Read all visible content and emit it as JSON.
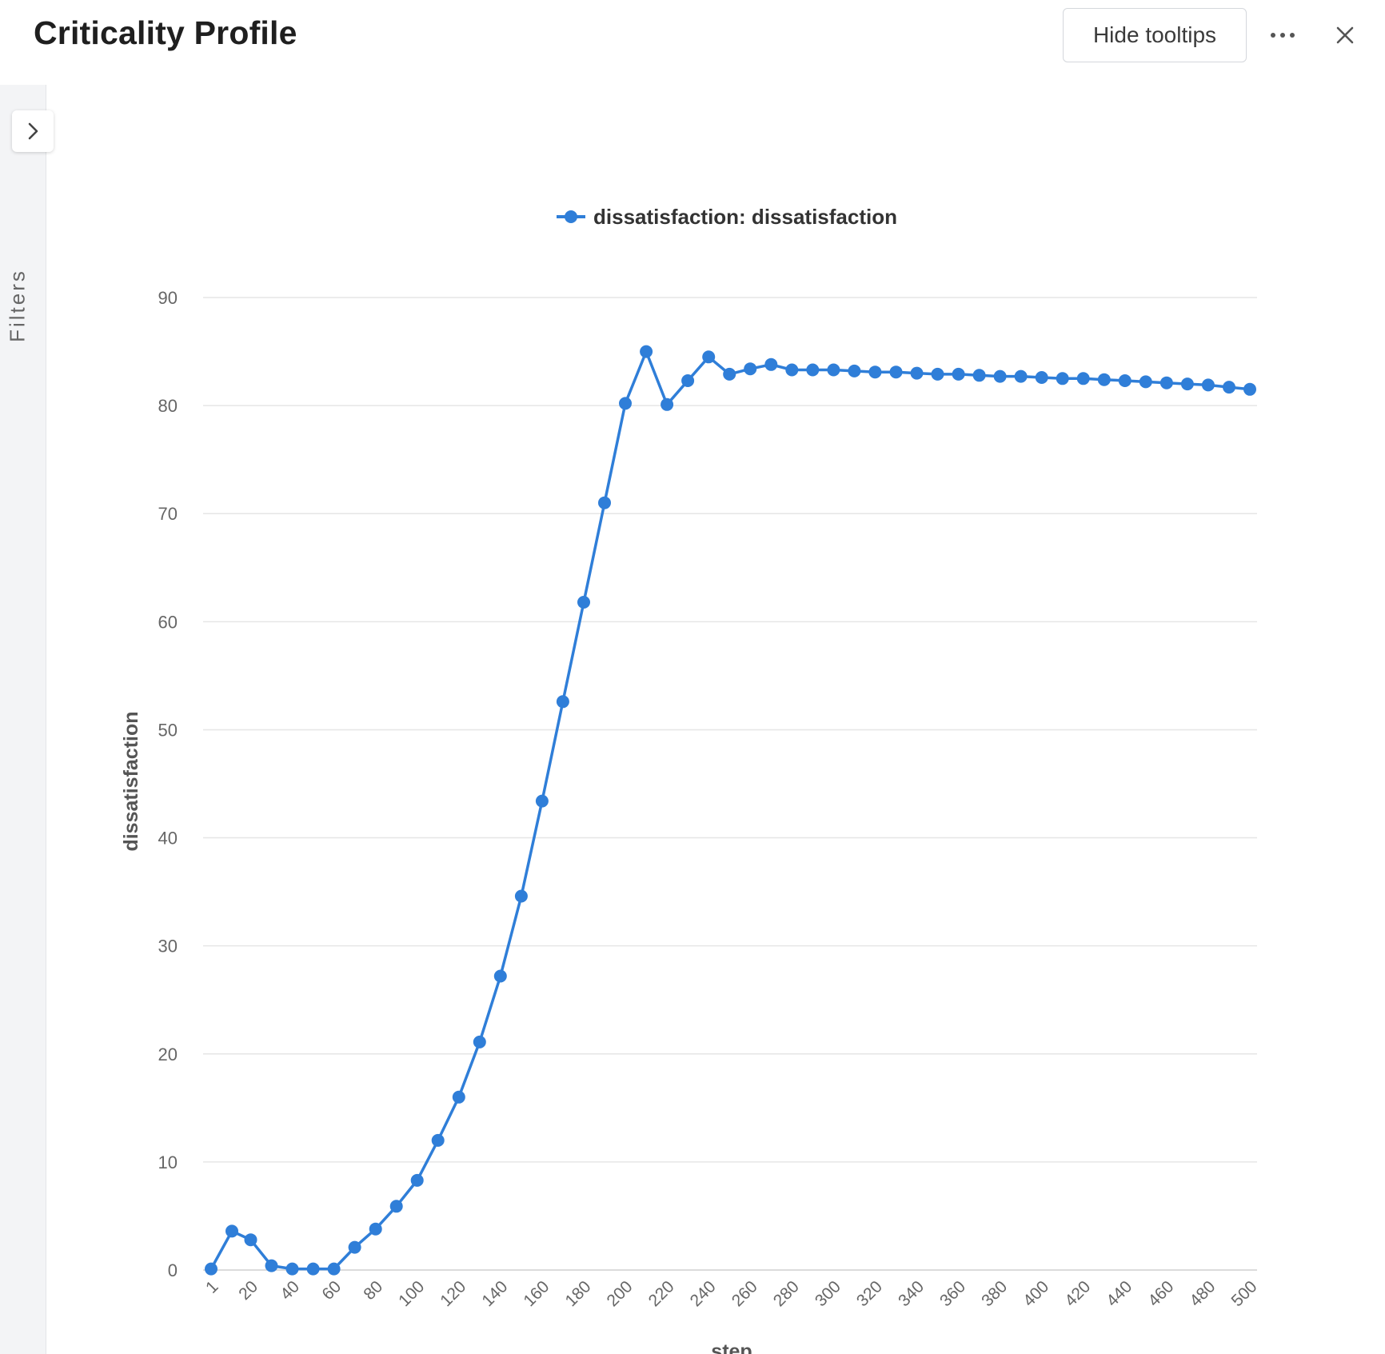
{
  "header": {
    "title": "Criticality Profile",
    "hide_tooltips_label": "Hide tooltips",
    "more_icon": "more-horizontal-icon",
    "close_icon": "close-icon"
  },
  "sidebar": {
    "filters_label": "Filters",
    "expand_icon": "chevron-right-icon"
  },
  "colors": {
    "series": "#2f7ed8",
    "grid": "#e6e6e6",
    "axis_text": "#666666",
    "axis_title": "#555555"
  },
  "chart_data": {
    "type": "line",
    "title": "",
    "xlabel": "step",
    "ylabel": "dissatisfaction",
    "ylim": [
      0,
      90
    ],
    "yticks": [
      0,
      10,
      20,
      30,
      40,
      50,
      60,
      70,
      80,
      90
    ],
    "xticks": [
      "1",
      "20",
      "40",
      "60",
      "80",
      "100",
      "120",
      "140",
      "160",
      "180",
      "200",
      "220",
      "240",
      "260",
      "280",
      "300",
      "320",
      "340",
      "360",
      "380",
      "400",
      "420",
      "440",
      "460",
      "480",
      "500"
    ],
    "legend": "top-center",
    "grid": true,
    "series": [
      {
        "name": "dissatisfaction: dissatisfaction",
        "points": [
          [
            1,
            0.1
          ],
          [
            11,
            3.6
          ],
          [
            20,
            2.8
          ],
          [
            30,
            0.4
          ],
          [
            40,
            0.1
          ],
          [
            50,
            0.1
          ],
          [
            60,
            0.1
          ],
          [
            70,
            2.1
          ],
          [
            80,
            3.8
          ],
          [
            90,
            5.9
          ],
          [
            100,
            8.3
          ],
          [
            110,
            12.0
          ],
          [
            120,
            16.0
          ],
          [
            130,
            21.1
          ],
          [
            140,
            27.2
          ],
          [
            150,
            34.6
          ],
          [
            160,
            43.4
          ],
          [
            170,
            52.6
          ],
          [
            180,
            61.8
          ],
          [
            190,
            71.0
          ],
          [
            200,
            80.2
          ],
          [
            210,
            85.0
          ],
          [
            220,
            80.1
          ],
          [
            230,
            82.3
          ],
          [
            240,
            84.5
          ],
          [
            250,
            82.9
          ],
          [
            260,
            83.4
          ],
          [
            270,
            83.8
          ],
          [
            280,
            83.3
          ],
          [
            290,
            83.3
          ],
          [
            300,
            83.3
          ],
          [
            310,
            83.2
          ],
          [
            320,
            83.1
          ],
          [
            330,
            83.1
          ],
          [
            340,
            83.0
          ],
          [
            350,
            82.9
          ],
          [
            360,
            82.9
          ],
          [
            370,
            82.8
          ],
          [
            380,
            82.7
          ],
          [
            390,
            82.7
          ],
          [
            400,
            82.6
          ],
          [
            410,
            82.5
          ],
          [
            420,
            82.5
          ],
          [
            430,
            82.4
          ],
          [
            440,
            82.3
          ],
          [
            450,
            82.2
          ],
          [
            460,
            82.1
          ],
          [
            470,
            82.0
          ],
          [
            480,
            81.9
          ],
          [
            490,
            81.7
          ],
          [
            500,
            81.5
          ]
        ]
      }
    ]
  }
}
